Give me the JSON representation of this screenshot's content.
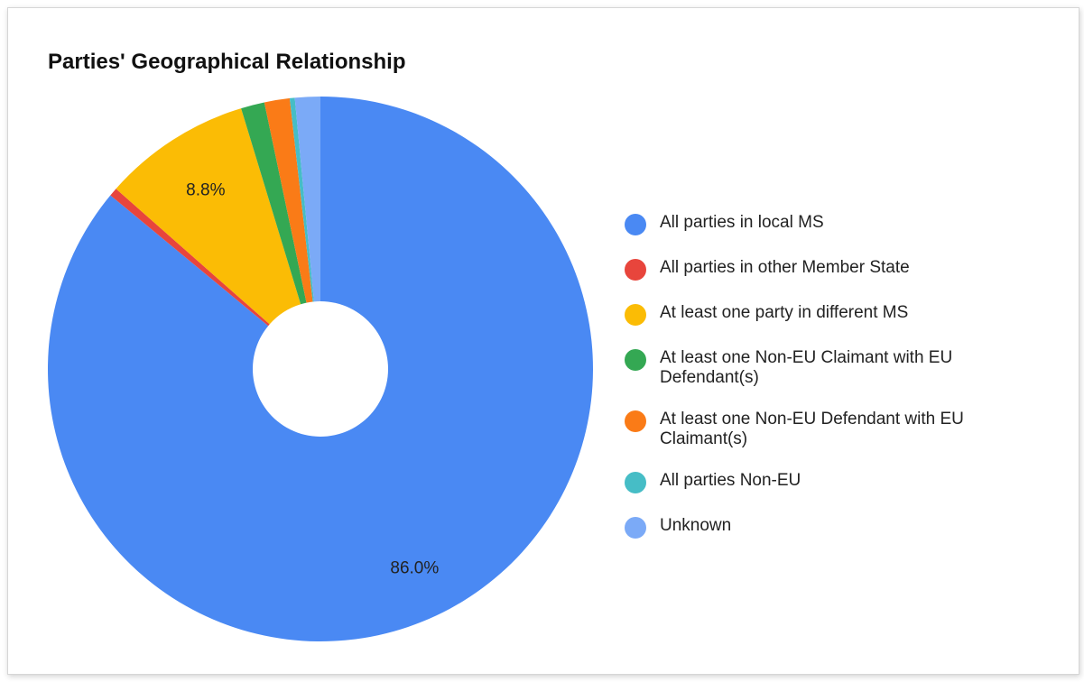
{
  "chart_data": {
    "type": "pie",
    "donut": true,
    "title": "Parties' Geographical Relationship",
    "legend_position": "right",
    "categories": [
      "All parties in local MS",
      "All parties in other Member State",
      "At least one party in different MS",
      "At least one Non-EU Claimant with EU Defendant(s)",
      "At least one Non-EU Defendant with EU Claimant(s)",
      "All parties Non-EU",
      "Unknown"
    ],
    "values": [
      86.0,
      0.5,
      8.8,
      1.4,
      1.5,
      0.3,
      1.5
    ],
    "data_labels": [
      "86.0%",
      "",
      "8.8%",
      "",
      "",
      "",
      ""
    ],
    "colors": [
      "#4a89f3",
      "#e8453c",
      "#fbbc05",
      "#34a853",
      "#fa7b17",
      "#46bdc6",
      "#7baaf7"
    ]
  }
}
